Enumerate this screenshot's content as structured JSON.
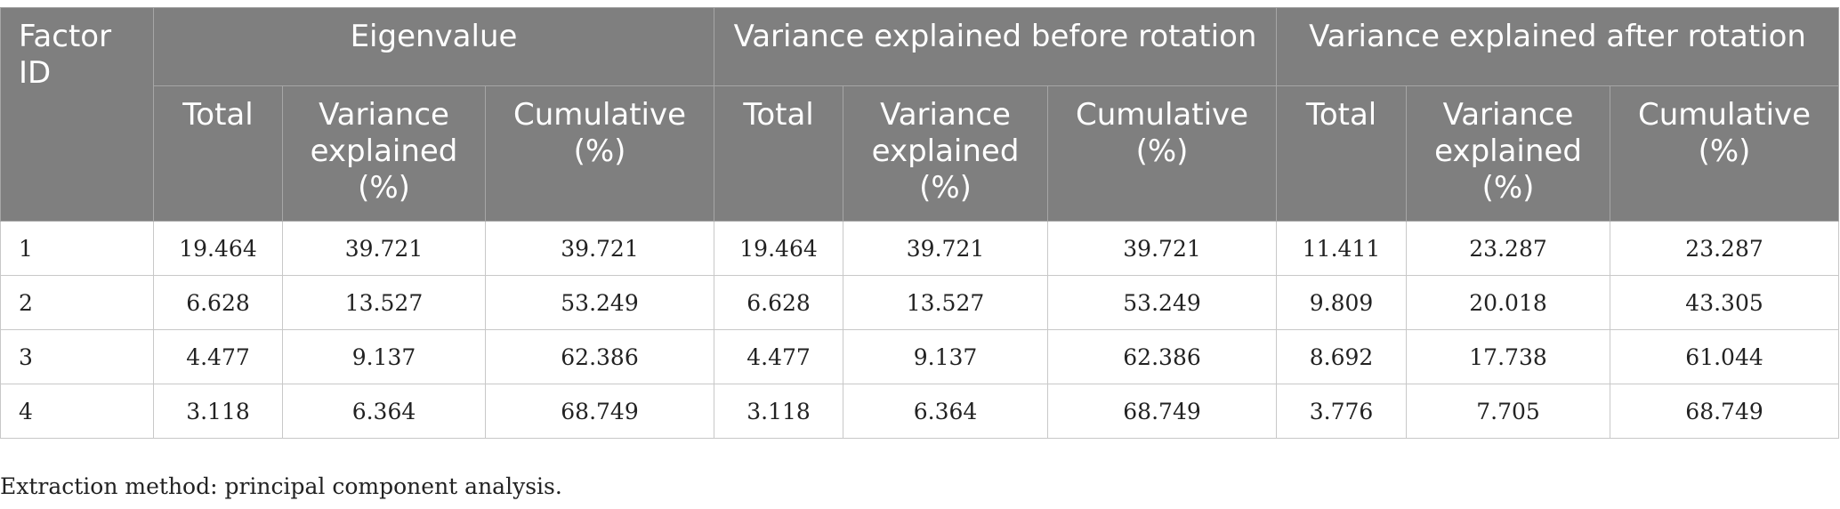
{
  "table": {
    "header": {
      "factor_id": "Factor ID",
      "groups": [
        "Eigenvalue",
        "Variance explained before rotation",
        "Variance explained after rotation"
      ],
      "subcolumns": [
        "Total",
        "Variance explained (%)",
        "Cumulative (%)",
        "Total",
        "Variance explained (%)",
        "Cumulative (%)",
        "Total",
        "Variance explained (%)",
        "Cumulative (%)"
      ]
    },
    "rows": [
      {
        "id": "1",
        "values": [
          "19.464",
          "39.721",
          "39.721",
          "19.464",
          "39.721",
          "39.721",
          "11.411",
          "23.287",
          "23.287"
        ]
      },
      {
        "id": "2",
        "values": [
          "6.628",
          "13.527",
          "53.249",
          "6.628",
          "13.527",
          "53.249",
          "9.809",
          "20.018",
          "43.305"
        ]
      },
      {
        "id": "3",
        "values": [
          "4.477",
          "9.137",
          "62.386",
          "4.477",
          "9.137",
          "62.386",
          "8.692",
          "17.738",
          "61.044"
        ]
      },
      {
        "id": "4",
        "values": [
          "3.118",
          "6.364",
          "68.749",
          "3.118",
          "6.364",
          "68.749",
          "3.776",
          "7.705",
          "68.749"
        ]
      }
    ]
  },
  "footnote": "Extraction method: principal component analysis."
}
